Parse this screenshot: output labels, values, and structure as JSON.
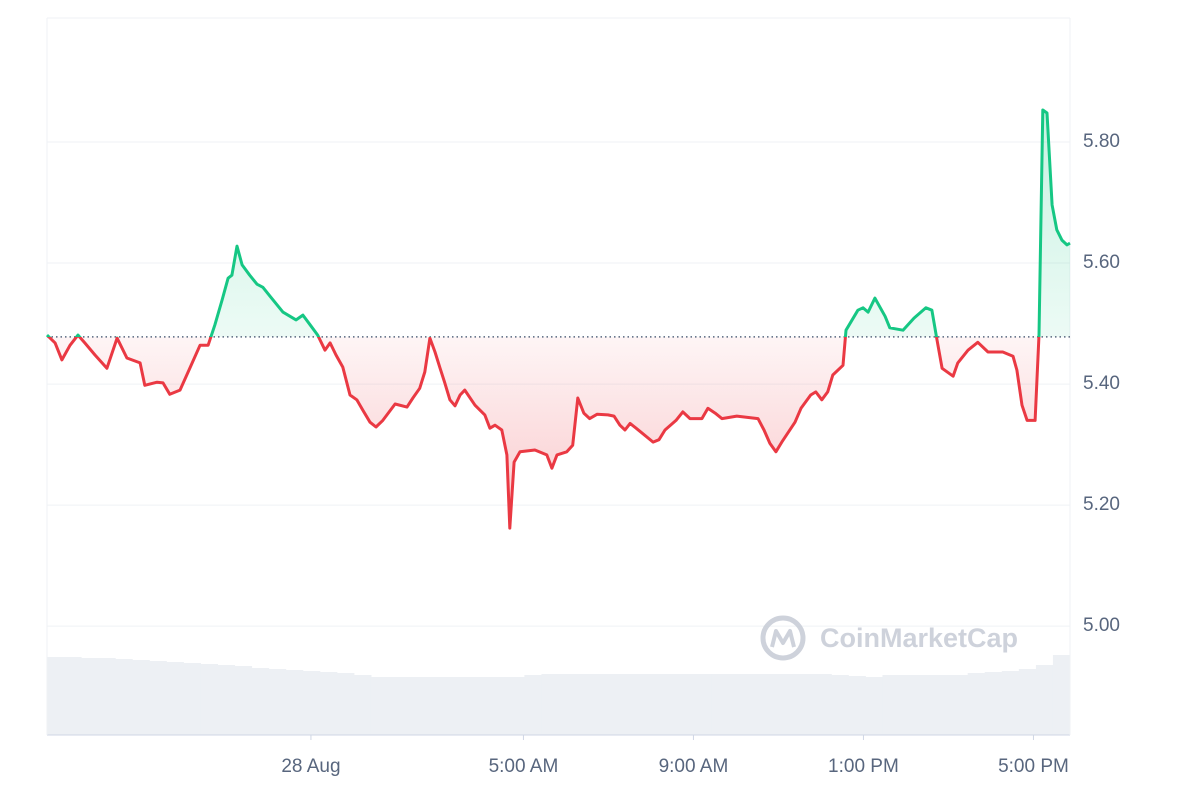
{
  "chart_data": {
    "type": "line",
    "x": [
      -6.21,
      -6.02,
      -5.86,
      -5.67,
      -5.48,
      -5.32,
      -5.08,
      -4.8,
      -4.56,
      -4.33,
      -4.02,
      -3.91,
      -3.62,
      -3.48,
      -3.32,
      -3.08,
      -2.85,
      -2.61,
      -2.42,
      -2.26,
      -2.09,
      -1.95,
      -1.86,
      -1.74,
      -1.62,
      -1.44,
      -1.27,
      -1.13,
      -0.96,
      -0.66,
      -0.35,
      -0.19,
      -0.02,
      0.16,
      0.33,
      0.45,
      0.59,
      0.75,
      0.92,
      1.08,
      1.22,
      1.39,
      1.53,
      1.69,
      1.98,
      2.26,
      2.4,
      2.56,
      2.68,
      2.8,
      2.92,
      3.04,
      3.15,
      3.27,
      3.39,
      3.51,
      3.62,
      3.86,
      4.09,
      4.21,
      4.33,
      4.49,
      4.61,
      4.68,
      4.78,
      4.92,
      5.27,
      5.55,
      5.67,
      5.79,
      6.02,
      6.16,
      6.28,
      6.42,
      6.56,
      6.73,
      6.99,
      7.13,
      7.27,
      7.39,
      7.51,
      7.76,
      8.05,
      8.19,
      8.33,
      8.59,
      8.75,
      8.92,
      9.2,
      9.34,
      9.51,
      9.67,
      10.02,
      10.52,
      10.66,
      10.8,
      10.94,
      11.08,
      11.39,
      11.53,
      11.76,
      11.88,
      12.02,
      12.16,
      12.28,
      12.52,
      12.59,
      12.87,
      12.99,
      13.11,
      13.27,
      13.51,
      13.62,
      13.93,
      14.19,
      14.47,
      14.61,
      14.73,
      14.85,
      15.11,
      15.22,
      15.46,
      15.69,
      15.93,
      16.28,
      16.52,
      16.61,
      16.73,
      16.85,
      17.04,
      17.13,
      17.22,
      17.32,
      17.44,
      17.55,
      17.67,
      17.79,
      17.86
    ],
    "values": [
      5.481,
      5.468,
      5.44,
      5.464,
      5.481,
      5.468,
      5.448,
      5.426,
      5.476,
      5.443,
      5.435,
      5.398,
      5.403,
      5.402,
      5.383,
      5.39,
      5.426,
      5.464,
      5.464,
      5.498,
      5.539,
      5.575,
      5.58,
      5.628,
      5.597,
      5.58,
      5.565,
      5.56,
      5.545,
      5.519,
      5.506,
      5.514,
      5.498,
      5.481,
      5.456,
      5.468,
      5.448,
      5.428,
      5.382,
      5.374,
      5.357,
      5.337,
      5.329,
      5.34,
      5.367,
      5.362,
      5.377,
      5.393,
      5.42,
      5.476,
      5.453,
      5.426,
      5.402,
      5.374,
      5.364,
      5.382,
      5.39,
      5.365,
      5.349,
      5.327,
      5.332,
      5.324,
      5.283,
      5.162,
      5.271,
      5.288,
      5.291,
      5.283,
      5.261,
      5.283,
      5.288,
      5.299,
      5.377,
      5.352,
      5.343,
      5.35,
      5.349,
      5.347,
      5.332,
      5.324,
      5.335,
      5.321,
      5.304,
      5.308,
      5.324,
      5.34,
      5.354,
      5.343,
      5.343,
      5.36,
      5.352,
      5.343,
      5.347,
      5.343,
      5.324,
      5.302,
      5.288,
      5.304,
      5.337,
      5.36,
      5.382,
      5.387,
      5.374,
      5.387,
      5.415,
      5.431,
      5.489,
      5.522,
      5.526,
      5.519,
      5.542,
      5.512,
      5.493,
      5.489,
      5.509,
      5.526,
      5.522,
      5.473,
      5.426,
      5.413,
      5.435,
      5.456,
      5.469,
      5.453,
      5.453,
      5.446,
      5.423,
      5.365,
      5.34,
      5.34,
      5.481,
      5.853,
      5.848,
      5.696,
      5.655,
      5.638,
      5.63,
      5.633
    ],
    "baseline": 5.478,
    "colors": {
      "up": "#16c784",
      "down": "#ea3943"
    },
    "xlim": [
      -6.21,
      17.86
    ],
    "xticks": [
      {
        "value": 0,
        "label": "28 Aug"
      },
      {
        "value": 5,
        "label": "5:00 AM"
      },
      {
        "value": 9,
        "label": "9:00 AM"
      },
      {
        "value": 13,
        "label": "1:00 PM"
      },
      {
        "value": 17,
        "label": "5:00 PM"
      }
    ],
    "ylim": [
      4.82,
      6.005
    ],
    "yticks": [
      {
        "value": 5,
        "label": "5.00"
      },
      {
        "value": 5.2,
        "label": "5.20"
      },
      {
        "value": 5.4,
        "label": "5.40"
      },
      {
        "value": 5.6,
        "label": "5.60"
      },
      {
        "value": 5.8,
        "label": "5.80"
      }
    ],
    "grid": true,
    "volume": {
      "color": "#edf0f4",
      "ylim": [
        0,
        717
      ],
      "values": [
        78,
        78,
        77,
        77,
        76,
        75,
        74,
        73,
        72,
        71,
        70,
        69,
        67,
        66,
        65,
        64,
        63,
        62,
        60,
        58,
        58,
        58,
        58,
        58,
        58,
        58,
        58,
        58,
        60,
        61,
        61,
        61,
        61,
        61,
        61,
        61,
        61,
        61,
        61,
        61,
        61,
        61,
        61,
        61,
        61,
        61,
        60,
        59,
        58,
        60,
        60,
        60,
        60,
        60,
        62,
        63,
        64,
        66,
        70,
        80
      ]
    },
    "watermark": "CoinMarketCap"
  }
}
